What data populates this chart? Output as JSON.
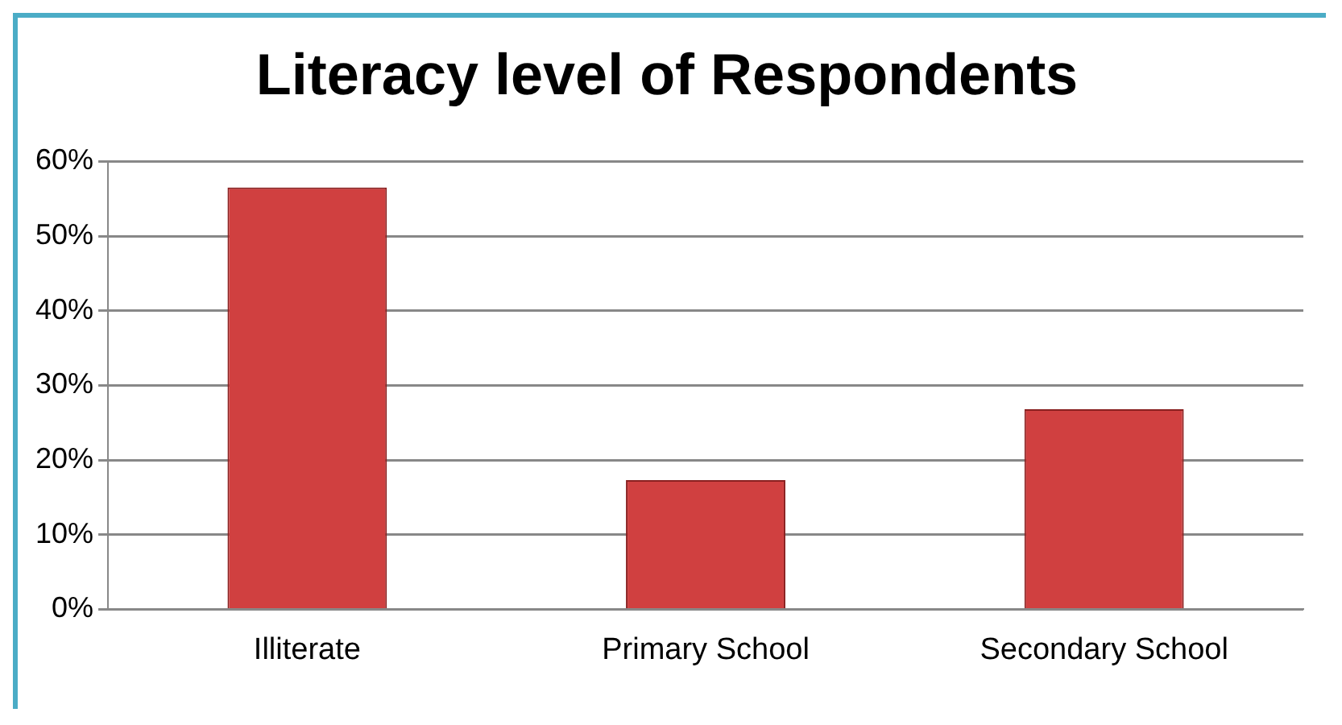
{
  "chart_data": {
    "type": "bar",
    "title": "Literacy level of Respondents",
    "categories": [
      "Illiterate",
      "Primary School",
      "Secondary School"
    ],
    "values": [
      56.5,
      17.3,
      26.8
    ],
    "color": "#d04040",
    "ylim": [
      0,
      60
    ],
    "yticks": [
      {
        "value": 0,
        "label": "0%"
      },
      {
        "value": 10,
        "label": "10%"
      },
      {
        "value": 20,
        "label": "20%"
      },
      {
        "value": 30,
        "label": "30%"
      },
      {
        "value": 40,
        "label": "40%"
      },
      {
        "value": 50,
        "label": "50%"
      },
      {
        "value": 60,
        "label": "60%"
      }
    ],
    "grid": "y",
    "legend": false
  }
}
